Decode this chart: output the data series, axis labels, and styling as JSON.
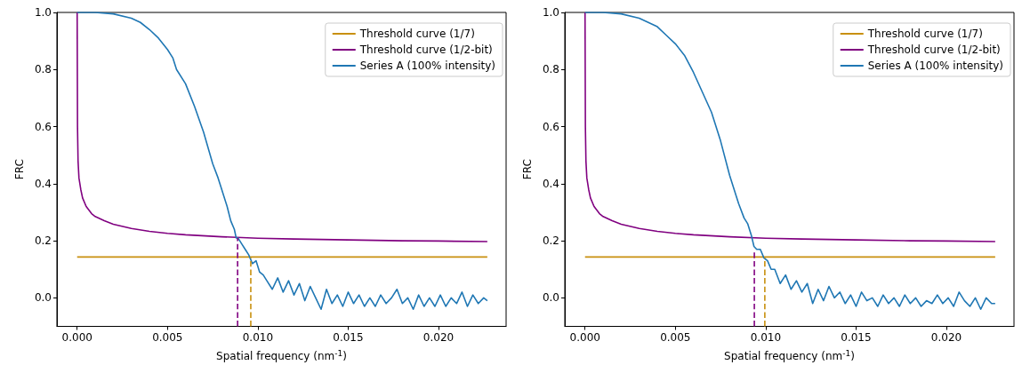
{
  "chart_data": [
    {
      "type": "line",
      "xlabel": "Spatial frequency (nm$^{-1}$)",
      "ylabel": "FRC",
      "legend": "top right",
      "grid": false,
      "xlim": [
        -0.00112,
        0.02374
      ],
      "ylim": [
        -0.1,
        1.0
      ],
      "xticks": [
        {
          "value": 0,
          "label": "0.000"
        },
        {
          "value": 0.005,
          "label": "0.005"
        },
        {
          "value": 0.01,
          "label": "0.010"
        },
        {
          "value": 0.015,
          "label": "0.015"
        },
        {
          "value": 0.02,
          "label": "0.020"
        }
      ],
      "yticks": [
        {
          "value": 0,
          "label": "0.0"
        },
        {
          "value": 0.2,
          "label": "0.2"
        },
        {
          "value": 0.4,
          "label": "0.4"
        },
        {
          "value": 0.6,
          "label": "0.6"
        },
        {
          "value": 0.8,
          "label": "0.8"
        },
        {
          "value": 1,
          "label": "1.0"
        }
      ],
      "series": [
        {
          "name": "Threshold curve (1/7)",
          "color": "#c8900e",
          "x": [
            0,
            0.0227
          ],
          "values": [
            0.143,
            0.143
          ]
        },
        {
          "name": "Threshold curve (1/2-bit)",
          "color": "#800080",
          "x": [
            0,
            2e-05,
            5e-05,
            0.0001,
            0.0002,
            0.0003,
            0.0005,
            0.0008,
            0.001,
            0.0015,
            0.002,
            0.003,
            0.004,
            0.005,
            0.006,
            0.008,
            0.01,
            0.012,
            0.015,
            0.018,
            0.02,
            0.0227
          ],
          "values": [
            1.0,
            0.6,
            0.48,
            0.42,
            0.38,
            0.35,
            0.32,
            0.295,
            0.285,
            0.27,
            0.258,
            0.243,
            0.233,
            0.226,
            0.221,
            0.214,
            0.209,
            0.206,
            0.203,
            0.2,
            0.199,
            0.197
          ]
        },
        {
          "name": "Series A (100% intensity)",
          "color": "#1f77b4",
          "x": [
            0,
            0.001,
            0.002,
            0.003,
            0.0035,
            0.004,
            0.0045,
            0.005,
            0.0053,
            0.0055,
            0.006,
            0.0065,
            0.007,
            0.0075,
            0.0078,
            0.008,
            0.0083,
            0.0085,
            0.0087,
            0.0088,
            0.0089,
            0.0091,
            0.0093,
            0.0095,
            0.0097,
            0.0099,
            0.0101,
            0.0103,
            0.0105,
            0.0108,
            0.0111,
            0.0114,
            0.0117,
            0.012,
            0.0123,
            0.0126,
            0.0129,
            0.0132,
            0.0135,
            0.0138,
            0.0141,
            0.0144,
            0.0147,
            0.015,
            0.0153,
            0.0156,
            0.0159,
            0.0162,
            0.0165,
            0.0168,
            0.0171,
            0.0174,
            0.0177,
            0.018,
            0.0183,
            0.0186,
            0.0189,
            0.0192,
            0.0195,
            0.0198,
            0.0201,
            0.0204,
            0.0207,
            0.021,
            0.0213,
            0.0216,
            0.0219,
            0.0222,
            0.0225,
            0.0227
          ],
          "values": [
            1.0,
            1.0,
            0.995,
            0.98,
            0.965,
            0.94,
            0.91,
            0.87,
            0.84,
            0.8,
            0.75,
            0.67,
            0.58,
            0.47,
            0.42,
            0.38,
            0.32,
            0.27,
            0.24,
            0.21,
            0.21,
            0.19,
            0.17,
            0.15,
            0.12,
            0.13,
            0.09,
            0.08,
            0.06,
            0.03,
            0.07,
            0.02,
            0.06,
            0.01,
            0.05,
            -0.01,
            0.04,
            0.0,
            -0.04,
            0.03,
            -0.02,
            0.01,
            -0.03,
            0.02,
            -0.02,
            0.01,
            -0.03,
            0.0,
            -0.03,
            0.01,
            -0.02,
            0.0,
            0.03,
            -0.02,
            0.0,
            -0.04,
            0.01,
            -0.03,
            0.0,
            -0.03,
            0.01,
            -0.03,
            0.0,
            -0.02,
            0.02,
            -0.03,
            0.01,
            -0.02,
            0.0,
            -0.01
          ]
        },
        {
          "color": "#800080",
          "line_style": "dashed",
          "x": [
            0.00888,
            0.00888
          ],
          "values": [
            -0.1,
            0.21
          ]
        },
        {
          "color": "#c8900e",
          "line_style": "dashed",
          "x": [
            0.00961,
            0.00961
          ],
          "values": [
            -0.1,
            0.143
          ]
        }
      ]
    },
    {
      "type": "line",
      "xlabel": "Spatial frequency (nm$^{-1}$)",
      "ylabel": "FRC",
      "legend": "top right",
      "grid": false,
      "xlim": [
        -0.00112,
        0.02374
      ],
      "ylim": [
        -0.1,
        1.0
      ],
      "xticks": [
        {
          "value": 0,
          "label": "0.000"
        },
        {
          "value": 0.005,
          "label": "0.005"
        },
        {
          "value": 0.01,
          "label": "0.010"
        },
        {
          "value": 0.015,
          "label": "0.015"
        },
        {
          "value": 0.02,
          "label": "0.020"
        }
      ],
      "yticks": [
        {
          "value": 0,
          "label": "0.0"
        },
        {
          "value": 0.2,
          "label": "0.2"
        },
        {
          "value": 0.4,
          "label": "0.4"
        },
        {
          "value": 0.6,
          "label": "0.6"
        },
        {
          "value": 0.8,
          "label": "0.8"
        },
        {
          "value": 1,
          "label": "1.0"
        }
      ],
      "series": [
        {
          "name": "Threshold curve (1/7)",
          "color": "#c8900e",
          "x": [
            0,
            0.0227
          ],
          "values": [
            0.143,
            0.143
          ]
        },
        {
          "name": "Threshold curve (1/2-bit)",
          "color": "#800080",
          "x": [
            0,
            2e-05,
            5e-05,
            0.0001,
            0.0002,
            0.0003,
            0.0005,
            0.0008,
            0.001,
            0.0015,
            0.002,
            0.003,
            0.004,
            0.005,
            0.006,
            0.008,
            0.01,
            0.012,
            0.015,
            0.018,
            0.02,
            0.0227
          ],
          "values": [
            1.0,
            0.6,
            0.48,
            0.42,
            0.38,
            0.35,
            0.32,
            0.295,
            0.285,
            0.27,
            0.258,
            0.243,
            0.233,
            0.226,
            0.221,
            0.214,
            0.209,
            0.206,
            0.203,
            0.2,
            0.199,
            0.197
          ]
        },
        {
          "name": "Series A (100% intensity)",
          "color": "#1f77b4",
          "x": [
            0,
            0.001,
            0.002,
            0.003,
            0.004,
            0.0045,
            0.005,
            0.0055,
            0.006,
            0.0065,
            0.007,
            0.0075,
            0.008,
            0.0083,
            0.0085,
            0.0088,
            0.009,
            0.0092,
            0.00935,
            0.0095,
            0.0097,
            0.0099,
            0.0101,
            0.0103,
            0.0105,
            0.0108,
            0.0111,
            0.0114,
            0.0117,
            0.012,
            0.0123,
            0.0126,
            0.0129,
            0.0132,
            0.0135,
            0.0138,
            0.0141,
            0.0144,
            0.0147,
            0.015,
            0.0153,
            0.0156,
            0.0159,
            0.0162,
            0.0165,
            0.0168,
            0.0171,
            0.0174,
            0.0177,
            0.018,
            0.0183,
            0.0186,
            0.0189,
            0.0192,
            0.0195,
            0.0198,
            0.0201,
            0.0204,
            0.0207,
            0.021,
            0.0213,
            0.0216,
            0.0219,
            0.0222,
            0.0225,
            0.0227
          ],
          "values": [
            1.0,
            1.0,
            0.995,
            0.98,
            0.95,
            0.92,
            0.89,
            0.85,
            0.79,
            0.72,
            0.65,
            0.55,
            0.43,
            0.37,
            0.33,
            0.28,
            0.26,
            0.22,
            0.18,
            0.17,
            0.17,
            0.14,
            0.13,
            0.1,
            0.1,
            0.05,
            0.08,
            0.03,
            0.06,
            0.02,
            0.05,
            -0.02,
            0.03,
            -0.01,
            0.04,
            0.0,
            0.02,
            -0.02,
            0.01,
            -0.03,
            0.02,
            -0.01,
            0.0,
            -0.03,
            0.01,
            -0.02,
            0.0,
            -0.03,
            0.01,
            -0.02,
            0.0,
            -0.03,
            -0.01,
            -0.02,
            0.01,
            -0.02,
            0.0,
            -0.03,
            0.02,
            -0.01,
            -0.03,
            0.0,
            -0.04,
            0.0,
            -0.02,
            -0.02
          ]
        },
        {
          "color": "#800080",
          "line_style": "dashed",
          "x": [
            0.00937,
            0.00937
          ],
          "values": [
            -0.1,
            0.16
          ]
        },
        {
          "color": "#c8900e",
          "line_style": "dashed",
          "x": [
            0.00995,
            0.00995
          ],
          "values": [
            -0.1,
            0.143
          ]
        }
      ]
    }
  ]
}
